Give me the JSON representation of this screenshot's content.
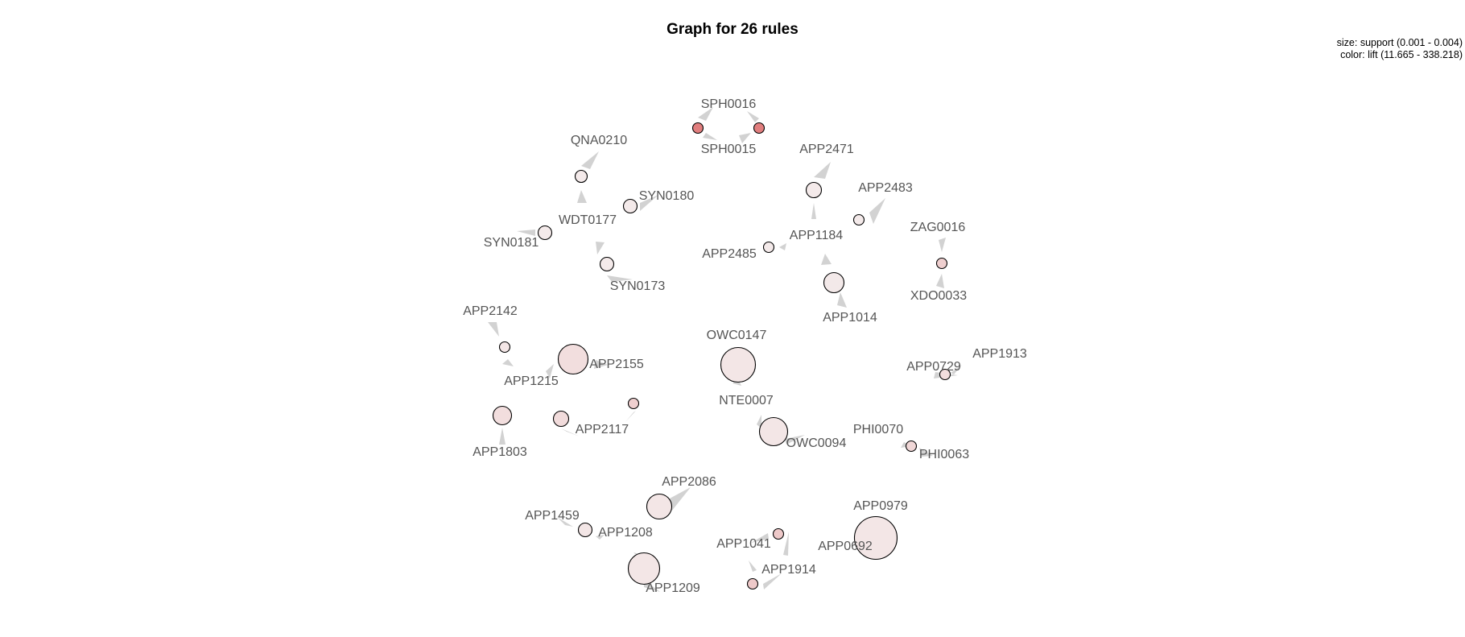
{
  "title": "Graph for 26 rules",
  "legend": {
    "size": "size: support (0.001 - 0.004)",
    "color": "color: lift (11.665 - 338.218)"
  },
  "colors": {
    "lift_low": "#f4ecec",
    "lift_high": "#e07878",
    "node_stroke": "#000000",
    "arrow": "#d2d2d2",
    "label": "#555555"
  },
  "items": [
    "SPH0016",
    "SPH0015",
    "QNA0210",
    "SYN0180",
    "WDT0177",
    "SYN0181",
    "SYN0173",
    "APP2471",
    "APP2483",
    "APP2485",
    "APP1184",
    "APP1014",
    "ZAG0016",
    "XDO0033",
    "APP2142",
    "APP2155",
    "APP1215",
    "APP2117",
    "APP1803",
    "OWC0147",
    "NTE0007",
    "OWC0094",
    "APP1913",
    "APP0729",
    "PHI0070",
    "PHI0063",
    "APP2086",
    "APP1459",
    "APP1208",
    "APP1209",
    "APP0979",
    "APP0692",
    "APP1041",
    "APP1914"
  ],
  "rules": [
    {
      "lhs": "SPH0016",
      "rhs": "SPH0015",
      "support_level": 0.0,
      "lift_level": 0.95
    },
    {
      "lhs": "SPH0015",
      "rhs": "SPH0016",
      "support_level": 0.0,
      "lift_level": 0.95
    },
    {
      "lhs": "QNA0210",
      "rhs": "WDT0177",
      "support_level": 0.05,
      "lift_level": 0.02
    },
    {
      "lhs": "SYN0180",
      "rhs": "WDT0177",
      "support_level": 0.1,
      "lift_level": 0.02
    },
    {
      "lhs": "SYN0181",
      "rhs": "WDT0177",
      "support_level": 0.1,
      "lift_level": 0.02
    },
    {
      "lhs": "SYN0173",
      "rhs": "WDT0177",
      "support_level": 0.1,
      "lift_level": 0.02
    },
    {
      "lhs": "APP2471",
      "rhs": "APP1184",
      "support_level": 0.15,
      "lift_level": 0.02
    },
    {
      "lhs": "APP2483",
      "rhs": "APP1184",
      "support_level": 0.0,
      "lift_level": 0.02
    },
    {
      "lhs": "APP2485",
      "rhs": "APP1184",
      "support_level": 0.0,
      "lift_level": 0.02
    },
    {
      "lhs": "APP1184",
      "rhs": "APP1014",
      "support_level": 0.3,
      "lift_level": 0.03
    },
    {
      "lhs": "ZAG0016",
      "rhs": "XDO0033",
      "support_level": 0.0,
      "lift_level": 0.25
    },
    {
      "lhs": "APP2142",
      "rhs": "APP1215",
      "support_level": 0.0,
      "lift_level": 0.05
    },
    {
      "lhs": "APP2155",
      "rhs": "APP1215",
      "support_level": 0.6,
      "lift_level": 0.12
    },
    {
      "lhs": "APP1215",
      "rhs": "APP2117",
      "support_level": 0.15,
      "lift_level": 0.15
    },
    {
      "lhs": "APP2117",
      "rhs": "APP1215",
      "support_level": 0.0,
      "lift_level": 0.25
    },
    {
      "lhs": "APP1803",
      "rhs": "APP1215",
      "support_level": 0.25,
      "lift_level": 0.12
    },
    {
      "lhs": "OWC0147",
      "rhs": "OWC0147",
      "support_level": 0.75,
      "lift_level": 0.05
    },
    {
      "lhs": "NTE0007",
      "rhs": "OWC0094",
      "support_level": 0.55,
      "lift_level": 0.05
    },
    {
      "lhs": "APP0729",
      "rhs": "APP1913",
      "support_level": 0.0,
      "lift_level": 0.12
    },
    {
      "lhs": "PHI0070",
      "rhs": "PHI0063",
      "support_level": 0.0,
      "lift_level": 0.18
    },
    {
      "lhs": "APP2086",
      "rhs": "APP1208",
      "support_level": 0.45,
      "lift_level": 0.05
    },
    {
      "lhs": "APP1459",
      "rhs": "APP1208",
      "support_level": 0.1,
      "lift_level": 0.05
    },
    {
      "lhs": "APP1208",
      "rhs": "APP1209",
      "support_level": 0.65,
      "lift_level": 0.05
    },
    {
      "lhs": "APP0692",
      "rhs": "APP0979",
      "support_level": 1.0,
      "lift_level": 0.05
    },
    {
      "lhs": "APP1041",
      "rhs": "APP1914",
      "support_level": 0.0,
      "lift_level": 0.3
    },
    {
      "lhs": "APP1914",
      "rhs": "APP1041",
      "support_level": 0.0,
      "lift_level": 0.3
    }
  ]
}
